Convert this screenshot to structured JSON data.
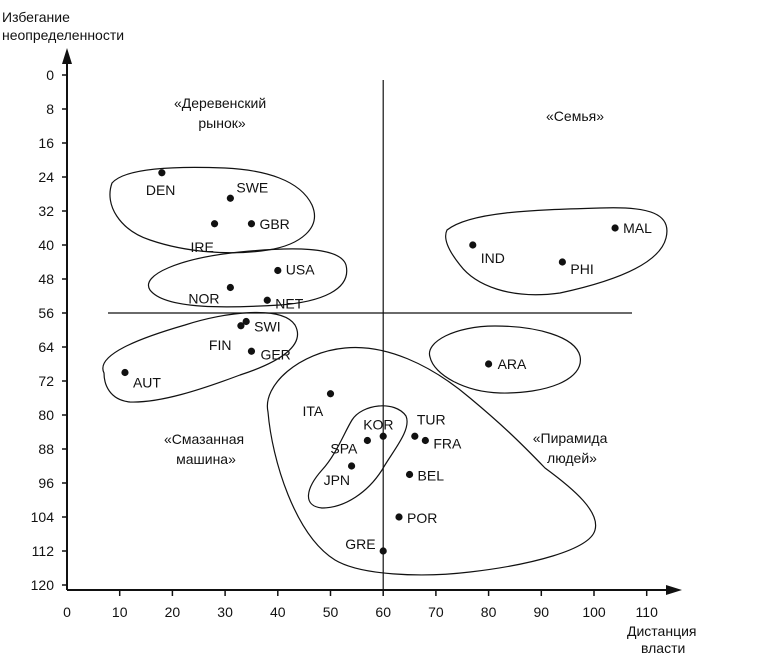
{
  "chart_data": {
    "type": "scatter",
    "title": "",
    "ylabel_lines": [
      "Избегание",
      "неопределенности"
    ],
    "xlabel_lines": [
      "Дистанция",
      "власти"
    ],
    "xlim": [
      0,
      115
    ],
    "ylim": [
      0,
      120
    ],
    "y_inverted": true,
    "x_ticks": [
      0,
      10,
      20,
      30,
      40,
      50,
      60,
      70,
      80,
      90,
      100,
      110
    ],
    "y_ticks": [
      0,
      8,
      16,
      24,
      32,
      40,
      48,
      56,
      64,
      72,
      80,
      88,
      96,
      104,
      112,
      120
    ],
    "dividers": {
      "x": 60,
      "y": 56
    },
    "points": [
      {
        "label": "DEN",
        "x": 18,
        "y": 23
      },
      {
        "label": "SWE",
        "x": 31,
        "y": 29
      },
      {
        "label": "IRE",
        "x": 28,
        "y": 35
      },
      {
        "label": "GBR",
        "x": 35,
        "y": 35
      },
      {
        "label": "USA",
        "x": 40,
        "y": 46
      },
      {
        "label": "NOR",
        "x": 31,
        "y": 50
      },
      {
        "label": "NET",
        "x": 38,
        "y": 53
      },
      {
        "label": "SWI",
        "x": 34,
        "y": 58
      },
      {
        "label": "FIN",
        "x": 33,
        "y": 59
      },
      {
        "label": "GER",
        "x": 35,
        "y": 65
      },
      {
        "label": "AUT",
        "x": 11,
        "y": 70
      },
      {
        "label": "MAL",
        "x": 104,
        "y": 36
      },
      {
        "label": "IND",
        "x": 77,
        "y": 40
      },
      {
        "label": "PHI",
        "x": 94,
        "y": 44
      },
      {
        "label": "ARA",
        "x": 80,
        "y": 68
      },
      {
        "label": "ITA",
        "x": 50,
        "y": 75
      },
      {
        "label": "KOR",
        "x": 60,
        "y": 85
      },
      {
        "label": "TUR",
        "x": 66,
        "y": 85
      },
      {
        "label": "FRA",
        "x": 68,
        "y": 86
      },
      {
        "label": "SPA",
        "x": 57,
        "y": 86
      },
      {
        "label": "JPN",
        "x": 54,
        "y": 92
      },
      {
        "label": "BEL",
        "x": 65,
        "y": 94
      },
      {
        "label": "POR",
        "x": 63,
        "y": 104
      },
      {
        "label": "GRE",
        "x": 60,
        "y": 112
      }
    ],
    "quadrant_labels": [
      {
        "lines": [
          "«Деревенский",
          "рынок»"
        ]
      },
      {
        "lines": [
          "«Семья»"
        ]
      },
      {
        "lines": [
          "«Смазанная",
          "машина»"
        ]
      },
      {
        "lines": [
          "«Пирамида",
          "людей»"
        ]
      }
    ]
  }
}
